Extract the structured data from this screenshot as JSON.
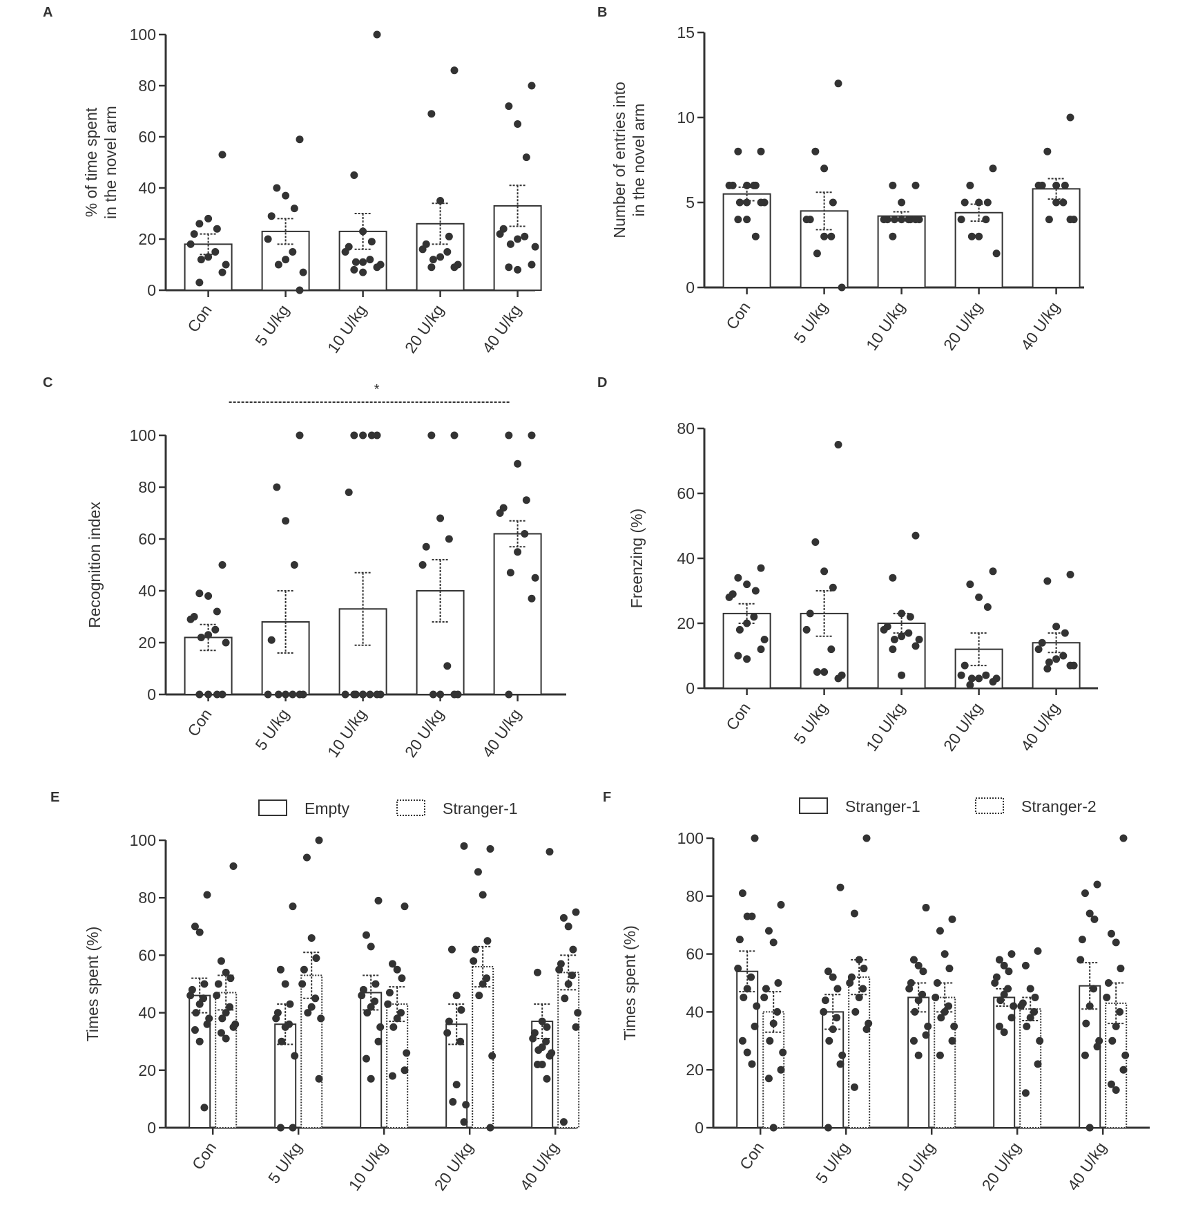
{
  "figure": {
    "panels": [
      "A",
      "B",
      "C",
      "D",
      "E",
      "F"
    ]
  },
  "chart_data": [
    {
      "id": "A",
      "type": "bar",
      "panel_letter": "A",
      "ylabel": "% of time spent in the novel arm",
      "ylabel_lines": [
        "% of time spent",
        "in the novel arm"
      ],
      "categories": [
        "Con",
        "5 U/kg",
        "10 U/kg",
        "20 U/kg",
        "40 U/kg"
      ],
      "ylim": [
        0,
        100
      ],
      "yticks": [
        0,
        20,
        40,
        60,
        80,
        100
      ],
      "series": [
        {
          "means": [
            18,
            23,
            23,
            26,
            33
          ],
          "sem": [
            4,
            5,
            7,
            8,
            8
          ],
          "points": [
            [
              53,
              26,
              28,
              24,
              22,
              18,
              15,
              13,
              12,
              10,
              7,
              3
            ],
            [
              59,
              40,
              37,
              32,
              29,
              20,
              15,
              12,
              10,
              7,
              0
            ],
            [
              100,
              45,
              23,
              19,
              17,
              15,
              12,
              11,
              11,
              10,
              9,
              8,
              7
            ],
            [
              86,
              69,
              35,
              21,
              18,
              16,
              15,
              13,
              12,
              10,
              9,
              9
            ],
            [
              80,
              72,
              65,
              52,
              24,
              22,
              21,
              20,
              18,
              17,
              10,
              9,
              8
            ]
          ]
        }
      ],
      "grid": false
    },
    {
      "id": "B",
      "type": "bar",
      "panel_letter": "B",
      "ylabel": "Number of entries into in the novel arm",
      "ylabel_lines": [
        "Number of entries into",
        "in the novel arm"
      ],
      "categories": [
        "Con",
        "5 U/kg",
        "10 U/kg",
        "20 U/kg",
        "40 U/kg"
      ],
      "ylim": [
        0,
        15
      ],
      "yticks": [
        0,
        5,
        10,
        15
      ],
      "series": [
        {
          "means": [
            5.5,
            4.5,
            4.2,
            4.4,
            5.8
          ],
          "sem": [
            0.4,
            1.1,
            0.25,
            0.5,
            0.6
          ],
          "points": [
            [
              8,
              8,
              6,
              6,
              6,
              6,
              6,
              5,
              5,
              5,
              5,
              4,
              4,
              3
            ],
            [
              12,
              8,
              7,
              5,
              4,
              4,
              3,
              3,
              2,
              0
            ],
            [
              6,
              6,
              5,
              4,
              4,
              4,
              4,
              4,
              4,
              4,
              4,
              3
            ],
            [
              7,
              6,
              5,
              5,
              5,
              4,
              4,
              3,
              3,
              2
            ],
            [
              10,
              8,
              6,
              6,
              6,
              6,
              5,
              5,
              4,
              4,
              4
            ]
          ]
        }
      ],
      "grid": false
    },
    {
      "id": "C",
      "type": "bar",
      "panel_letter": "C",
      "ylabel": "Recognition index",
      "categories": [
        "Con",
        "5 U/kg",
        "10 U/kg",
        "20 U/kg",
        "40 U/kg"
      ],
      "ylim": [
        0,
        100
      ],
      "yticks": [
        0,
        20,
        40,
        60,
        80,
        100
      ],
      "significance": {
        "from": "Con",
        "to": "40 U/kg",
        "label": "*"
      },
      "series": [
        {
          "means": [
            22,
            28,
            33,
            40,
            62
          ],
          "sem": [
            5,
            12,
            14,
            12,
            5
          ],
          "points": [
            [
              50,
              39,
              38,
              32,
              30,
              29,
              25,
              23,
              22,
              20,
              0,
              0,
              0,
              0
            ],
            [
              100,
              80,
              67,
              50,
              21,
              0,
              0,
              0,
              0,
              0,
              0
            ],
            [
              100,
              100,
              100,
              100,
              78,
              0,
              0,
              0,
              0,
              0,
              0,
              0,
              0
            ],
            [
              100,
              100,
              68,
              60,
              57,
              50,
              11,
              0,
              0,
              0,
              0
            ],
            [
              100,
              100,
              89,
              75,
              72,
              70,
              62,
              55,
              47,
              45,
              37,
              0
            ]
          ]
        }
      ],
      "grid": false
    },
    {
      "id": "D",
      "type": "bar",
      "panel_letter": "D",
      "ylabel": "Freenzing (%)",
      "categories": [
        "Con",
        "5 U/kg",
        "10 U/kg",
        "20 U/kg",
        "40 U/kg"
      ],
      "ylim": [
        0,
        80
      ],
      "yticks": [
        0,
        20,
        40,
        60,
        80
      ],
      "series": [
        {
          "means": [
            23,
            23,
            20,
            12,
            14
          ],
          "sem": [
            3,
            7,
            3,
            5,
            3
          ],
          "points": [
            [
              37,
              34,
              32,
              30,
              29,
              28,
              22,
              20,
              18,
              15,
              12,
              10,
              9
            ],
            [
              75,
              45,
              36,
              31,
              23,
              18,
              12,
              5,
              5,
              4,
              3
            ],
            [
              47,
              34,
              23,
              22,
              19,
              18,
              17,
              16,
              15,
              15,
              13,
              12,
              4
            ],
            [
              36,
              32,
              28,
              25,
              7,
              4,
              4,
              3,
              3,
              3,
              2,
              1
            ],
            [
              35,
              33,
              19,
              17,
              14,
              12,
              10,
              9,
              8,
              7,
              7,
              6
            ]
          ]
        }
      ],
      "grid": false
    },
    {
      "id": "E",
      "type": "bar",
      "panel_letter": "E",
      "ylabel": "Times spent (%)",
      "categories": [
        "Con",
        "5 U/kg",
        "10 U/kg",
        "20 U/kg",
        "40 U/kg"
      ],
      "ylim": [
        0,
        100
      ],
      "yticks": [
        0,
        20,
        40,
        60,
        80,
        100
      ],
      "legend": [
        "Empty",
        "Stranger-1"
      ],
      "series": [
        {
          "name": "Empty",
          "means": [
            46,
            36,
            47,
            36,
            37
          ],
          "sem": [
            6,
            7,
            6,
            7,
            6
          ],
          "points": [
            [
              81,
              70,
              68,
              50,
              48,
              46,
              45,
              43,
              40,
              38,
              36,
              34,
              30,
              7
            ],
            [
              77,
              55,
              50,
              43,
              40,
              38,
              36,
              35,
              30,
              25,
              0,
              0
            ],
            [
              79,
              67,
              63,
              50,
              48,
              46,
              44,
              42,
              40,
              35,
              30,
              24,
              17
            ],
            [
              98,
              62,
              46,
              41,
              37,
              33,
              30,
              15,
              9,
              8,
              2
            ],
            [
              96,
              54,
              37,
              35,
              33,
              31,
              30,
              28,
              27,
              26,
              25,
              22,
              22,
              17
            ]
          ]
        },
        {
          "name": "Stranger-1",
          "means": [
            47,
            53,
            43,
            56,
            54
          ],
          "sem": [
            6,
            8,
            6,
            7,
            6
          ],
          "points": [
            [
              91,
              58,
              54,
              52,
              50,
              46,
              42,
              40,
              38,
              36,
              35,
              33,
              31
            ],
            [
              100,
              94,
              66,
              59,
              55,
              50,
              45,
              42,
              40,
              38,
              17
            ],
            [
              77,
              57,
              55,
              52,
              47,
              43,
              40,
              38,
              35,
              26,
              20,
              18
            ],
            [
              97,
              89,
              81,
              65,
              62,
              58,
              52,
              50,
              46,
              25,
              0
            ],
            [
              75,
              73,
              70,
              62,
              57,
              55,
              53,
              50,
              45,
              40,
              35,
              2
            ]
          ]
        }
      ],
      "grid": false
    },
    {
      "id": "F",
      "type": "bar",
      "panel_letter": "F",
      "ylabel": "Times spent (%)",
      "categories": [
        "Con",
        "5 U/kg",
        "10 U/kg",
        "20 U/kg",
        "40 U/kg"
      ],
      "ylim": [
        0,
        100
      ],
      "yticks": [
        0,
        20,
        40,
        60,
        80,
        100
      ],
      "legend": [
        "Stranger-1",
        "Stranger-2"
      ],
      "series": [
        {
          "name": "Stranger-1",
          "means": [
            54,
            40,
            45,
            45,
            49
          ],
          "sem": [
            7,
            6,
            5,
            3,
            8
          ],
          "points": [
            [
              100,
              81,
              73,
              73,
              65,
              55,
              52,
              48,
              45,
              42,
              35,
              30,
              26,
              22
            ],
            [
              83,
              54,
              52,
              48,
              44,
              40,
              38,
              34,
              30,
              25,
              22,
              0
            ],
            [
              76,
              58,
              56,
              54,
              50,
              48,
              46,
              44,
              40,
              35,
              32,
              30,
              25
            ],
            [
              60,
              58,
              56,
              54,
              52,
              50,
              48,
              46,
              44,
              42,
              38,
              35,
              33
            ],
            [
              84,
              81,
              74,
              72,
              65,
              58,
              48,
              42,
              36,
              30,
              28,
              25,
              0
            ]
          ]
        },
        {
          "name": "Stranger-2",
          "means": [
            40,
            52,
            45,
            41,
            43
          ],
          "sem": [
            7,
            6,
            5,
            4,
            7
          ],
          "points": [
            [
              77,
              68,
              64,
              50,
              48,
              45,
              40,
              36,
              30,
              26,
              20,
              17,
              0
            ],
            [
              100,
              74,
              58,
              55,
              52,
              50,
              48,
              45,
              40,
              36,
              34,
              14
            ],
            [
              72,
              68,
              60,
              55,
              50,
              45,
              42,
              40,
              38,
              35,
              30,
              25
            ],
            [
              61,
              56,
              48,
              45,
              43,
              42,
              40,
              38,
              35,
              30,
              22,
              12
            ],
            [
              100,
              67,
              64,
              55,
              50,
              45,
              40,
              35,
              30,
              25,
              20,
              15,
              13
            ]
          ]
        }
      ],
      "grid": false
    }
  ]
}
